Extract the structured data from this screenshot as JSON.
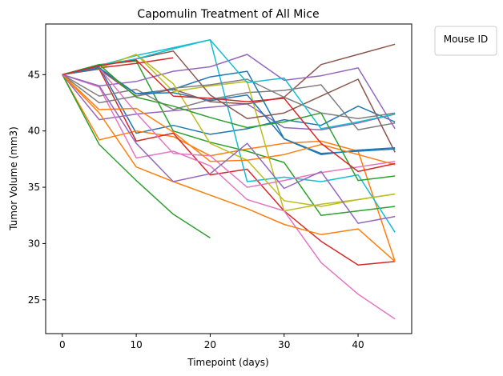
{
  "chart_data": {
    "type": "line",
    "title": "Capomulin Treatment of All Mice",
    "xlabel": "Timepoint (days)",
    "ylabel": "Tumor Volume (mm3)",
    "xlim": [
      -2.25,
      47.25
    ],
    "ylim": [
      22.0,
      49.5
    ],
    "xticks": [
      0,
      10,
      20,
      30,
      40
    ],
    "yticks": [
      25,
      30,
      35,
      40,
      45
    ],
    "grid": false,
    "legend": {
      "title": "Mouse ID",
      "placement": "outside-top-right",
      "entries": []
    },
    "series": [
      {
        "color": "#1f77b4",
        "x": [
          0,
          5,
          10,
          15,
          20,
          25,
          30,
          35,
          40,
          45
        ],
        "y": [
          45,
          45.7,
          39.8,
          40.5,
          39.7,
          40.2,
          41.0,
          40.5,
          42.2,
          40.8
        ]
      },
      {
        "color": "#ff7f0e",
        "x": [
          0,
          5,
          10,
          15,
          20,
          25,
          30,
          35,
          40,
          45
        ],
        "y": [
          45,
          39.2,
          40.0,
          39.5,
          37.8,
          38.4,
          38.9,
          39.1,
          38.2,
          28.4
        ]
      },
      {
        "color": "#2ca02c",
        "x": [
          0,
          5,
          10,
          15,
          20,
          25,
          30,
          35,
          40,
          45
        ],
        "y": [
          45,
          45.9,
          46.2,
          40.0,
          39.0,
          38.2,
          37.2,
          32.5,
          32.9,
          33.3
        ]
      },
      {
        "color": "#d62728",
        "x": [
          0,
          5,
          10,
          15,
          20,
          25,
          30,
          35,
          40,
          45
        ],
        "y": [
          45,
          45.5,
          39.1,
          39.8,
          36.1,
          36.6,
          32.9,
          30.2,
          28.1,
          28.4
        ]
      },
      {
        "color": "#9467bd",
        "x": [
          0,
          5,
          10,
          15,
          20,
          25,
          30,
          35,
          40,
          45
        ],
        "y": [
          45,
          41.0,
          41.5,
          41.8,
          42.1,
          42.4,
          40.3,
          40.1,
          40.7,
          41.5
        ]
      },
      {
        "color": "#8c564b",
        "x": [
          0,
          5,
          10,
          15,
          20,
          25,
          30,
          35,
          40,
          45
        ],
        "y": [
          45,
          45.5,
          43.1,
          43.7,
          42.6,
          42.4,
          43.0,
          45.9,
          46.8,
          47.7
        ]
      },
      {
        "color": "#e377c2",
        "x": [
          0,
          5,
          10,
          15,
          20,
          25,
          30,
          35,
          40,
          45
        ],
        "y": [
          45,
          43.9,
          37.6,
          38.2,
          36.9,
          33.9,
          32.9,
          28.3,
          25.5,
          23.3
        ]
      },
      {
        "color": "#7f7f7f",
        "x": [
          0,
          5,
          10,
          15,
          20,
          25,
          30,
          35,
          40,
          45
        ],
        "y": [
          45,
          43.1,
          43.7,
          41.9,
          42.8,
          43.4,
          43.6,
          44.1,
          40.1,
          40.7
        ]
      },
      {
        "color": "#bcbd22",
        "x": [
          0,
          5,
          10,
          15,
          20,
          25,
          30,
          35,
          40,
          45
        ],
        "y": [
          45,
          45.6,
          46.8,
          43.5,
          44.0,
          44.4,
          32.9,
          33.5,
          33.9,
          34.4
        ]
      },
      {
        "color": "#17becf",
        "x": [
          0,
          5,
          10,
          15,
          20,
          25,
          30,
          35,
          40,
          45
        ],
        "y": [
          45,
          45.8,
          46.7,
          47.4,
          48.1,
          35.5,
          35.9,
          35.5,
          36.1,
          31.0
        ]
      },
      {
        "color": "#1f77b4",
        "x": [
          0,
          5,
          10,
          15,
          20,
          25,
          30,
          35,
          40,
          45
        ],
        "y": [
          45,
          45.6,
          43.3,
          43.7,
          44.8,
          45.3,
          39.3,
          37.9,
          38.3,
          38.5
        ]
      },
      {
        "color": "#ff7f0e",
        "x": [
          0,
          5,
          10,
          15,
          20,
          25,
          30,
          35,
          40,
          45
        ],
        "y": [
          45,
          41.6,
          36.8,
          35.5,
          34.3,
          33.1,
          31.7,
          30.8,
          31.3,
          28.4
        ]
      },
      {
        "color": "#2ca02c",
        "x": [
          0,
          5,
          10,
          15,
          20
        ],
        "y": [
          45,
          38.8,
          35.6,
          32.6,
          30.5
        ]
      },
      {
        "color": "#d62728",
        "x": [
          0,
          5,
          10,
          15
        ],
        "y": [
          45,
          45.6,
          46.0,
          46.5
        ]
      },
      {
        "color": "#9467bd",
        "x": [
          0,
          5,
          10,
          15,
          20,
          25,
          30,
          35,
          40,
          45
        ],
        "y": [
          45,
          44.0,
          44.4,
          45.3,
          45.7,
          46.8,
          44.5,
          44.9,
          45.6,
          40.2
        ]
      },
      {
        "color": "#8c564b",
        "x": [
          0,
          5,
          10,
          15,
          20,
          25,
          30,
          35,
          40,
          45
        ],
        "y": [
          45,
          45.8,
          46.4,
          47.1,
          43.2,
          41.1,
          41.6,
          43.1,
          44.6,
          38.1
        ]
      },
      {
        "color": "#e377c2",
        "x": [
          0,
          5,
          10,
          15,
          20,
          25,
          30,
          35,
          40,
          45
        ],
        "y": [
          45,
          45.6,
          41.6,
          38.0,
          37.8,
          35.0,
          35.6,
          36.3,
          36.8,
          37.3
        ]
      },
      {
        "color": "#7f7f7f",
        "x": [
          0,
          5,
          10,
          15,
          20,
          25,
          30,
          35,
          40,
          45
        ],
        "y": [
          45,
          42.5,
          43.1,
          43.8,
          44.1,
          44.6,
          43.0,
          41.6,
          41.1,
          41.6
        ]
      },
      {
        "color": "#bcbd22",
        "x": [
          0,
          5,
          10,
          15,
          20,
          25,
          30,
          35,
          40,
          45
        ],
        "y": [
          45,
          45.6,
          46.8,
          44.2,
          38.9,
          37.4,
          33.8,
          33.3,
          33.9,
          34.4
        ]
      },
      {
        "color": "#17becf",
        "x": [
          0,
          5,
          10,
          15,
          20,
          25,
          30,
          35,
          40,
          45
        ],
        "y": [
          45,
          45.8,
          46.4,
          47.3,
          48.1,
          44.3,
          44.7,
          40.2,
          40.8,
          41.5
        ]
      },
      {
        "color": "#1f77b4",
        "x": [
          0,
          5,
          10,
          15,
          20,
          25,
          30,
          35,
          40,
          45
        ],
        "y": [
          45,
          45.6,
          43.3,
          43.4,
          42.7,
          43.2,
          39.3,
          38.0,
          38.2,
          38.4
        ]
      },
      {
        "color": "#ff7f0e",
        "x": [
          0,
          5,
          10,
          15,
          20,
          25,
          30,
          35,
          40,
          45
        ],
        "y": [
          45,
          41.9,
          42.0,
          39.9,
          37.3,
          37.4,
          37.9,
          38.8,
          37.9,
          37.0
        ]
      },
      {
        "color": "#2ca02c",
        "x": [
          0,
          5,
          10,
          15,
          20,
          25,
          30,
          35,
          40,
          45
        ],
        "y": [
          45,
          45.9,
          43.0,
          42.2,
          41.2,
          40.3,
          40.8,
          41.6,
          35.6,
          36.0
        ]
      },
      {
        "color": "#d62728",
        "x": [
          0,
          5,
          10,
          15,
          20,
          25,
          30,
          35,
          40,
          45
        ],
        "y": [
          45,
          45.8,
          46.3,
          43.1,
          42.9,
          42.6,
          42.9,
          38.9,
          36.4,
          37.1
        ]
      },
      {
        "color": "#9467bd",
        "x": [
          0,
          5,
          10,
          15,
          20,
          25,
          30,
          35,
          40,
          45
        ],
        "y": [
          45,
          44.0,
          38.9,
          35.5,
          36.2,
          38.9,
          34.9,
          36.4,
          31.8,
          32.4
        ]
      }
    ]
  }
}
